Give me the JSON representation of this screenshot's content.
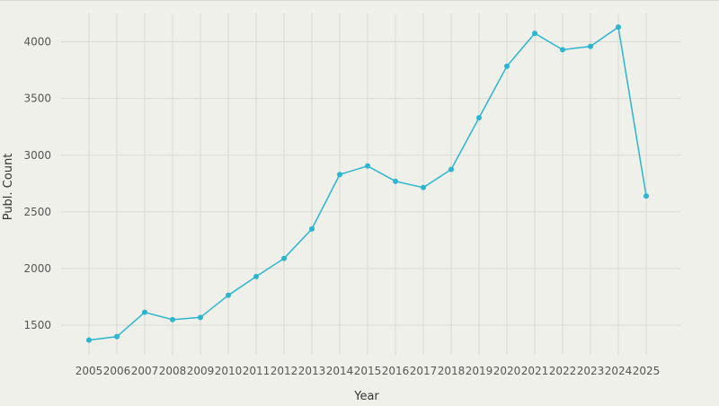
{
  "chart_data": {
    "type": "line",
    "title": "",
    "xlabel": "Year",
    "ylabel": "Publ. Count",
    "x": [
      "2005",
      "2006",
      "2007",
      "2008",
      "2009",
      "2010",
      "2011",
      "2012",
      "2013",
      "2014",
      "2015",
      "2016",
      "2017",
      "2018",
      "2019",
      "2020",
      "2021",
      "2022",
      "2023",
      "2024",
      "2025"
    ],
    "series": [
      {
        "name": "",
        "values": [
          1370,
          1400,
          1615,
          1550,
          1570,
          1765,
          1930,
          2090,
          2350,
          2830,
          2905,
          2770,
          2715,
          2875,
          3330,
          3785,
          4075,
          3930,
          3960,
          4130,
          2640
        ]
      }
    ],
    "yticks": [
      1500,
      2000,
      2500,
      3000,
      3500,
      4000
    ],
    "ylim": [
      1240,
      4250
    ],
    "grid": true,
    "legend": "none",
    "colors": {
      "line": "#2bb5cf",
      "background": "#f0f0eb",
      "grid": "#dadad5"
    }
  }
}
